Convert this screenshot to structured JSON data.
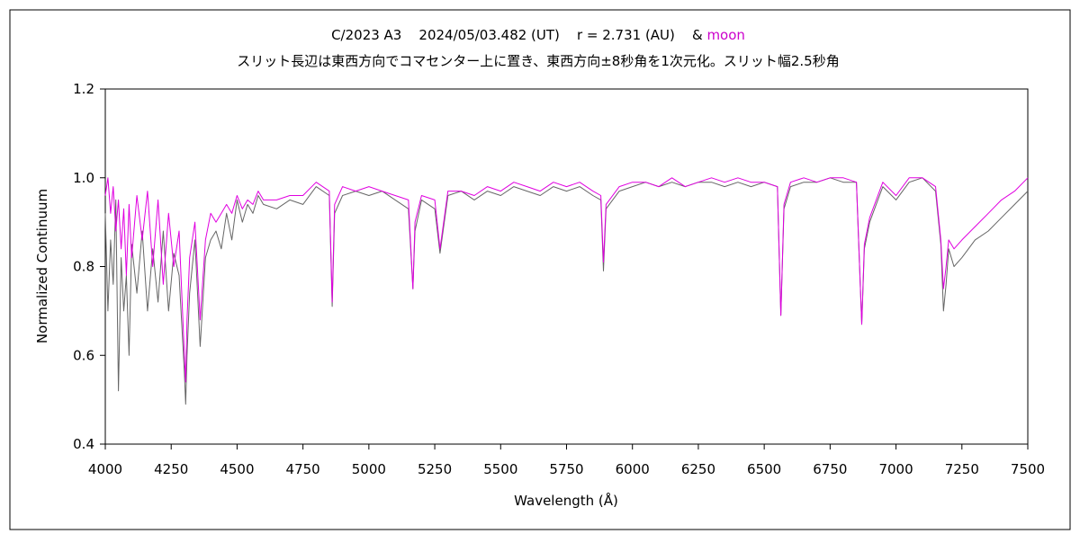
{
  "title": {
    "prefix": "C/2023 A3    2024/05/03.482 (UT)    r = 2.731 (AU)    & ",
    "highlight": "moon",
    "highlight_color": "#cc00cc",
    "subtitle": "スリット長辺は東西方向でコマセンター上に置き、東西方向±8秒角を1次元化。スリット幅2.5秒角"
  },
  "chart_data": {
    "type": "line",
    "xlabel": "Wavelength (Å)",
    "ylabel": "Normalized Continuum",
    "xlim": [
      4000,
      7500
    ],
    "ylim": [
      0.4,
      1.2
    ],
    "xticks": [
      4000,
      4250,
      4500,
      4750,
      5000,
      5250,
      5500,
      5750,
      6000,
      6250,
      6500,
      6750,
      7000,
      7250,
      7500
    ],
    "yticks": [
      "0.4",
      "0.6",
      "0.8",
      "1.0",
      "1.2"
    ],
    "grid": false,
    "legend": "none",
    "series": [
      {
        "color": "#666666",
        "x": [
          4000,
          4010,
          4020,
          4030,
          4040,
          4050,
          4060,
          4070,
          4080,
          4090,
          4100,
          4120,
          4140,
          4160,
          4180,
          4200,
          4220,
          4240,
          4260,
          4280,
          4300,
          4305,
          4310,
          4320,
          4340,
          4360,
          4380,
          4400,
          4420,
          4440,
          4460,
          4480,
          4500,
          4520,
          4540,
          4560,
          4580,
          4600,
          4650,
          4700,
          4750,
          4800,
          4850,
          4861,
          4870,
          4900,
          4950,
          5000,
          5050,
          5100,
          5150,
          5167,
          5175,
          5200,
          5250,
          5270,
          5300,
          5350,
          5400,
          5450,
          5500,
          5550,
          5600,
          5650,
          5700,
          5750,
          5800,
          5850,
          5880,
          5890,
          5900,
          5950,
          6000,
          6050,
          6100,
          6150,
          6200,
          6250,
          6300,
          6350,
          6400,
          6450,
          6500,
          6550,
          6563,
          6575,
          6600,
          6650,
          6700,
          6750,
          6800,
          6850,
          6870,
          6880,
          6900,
          6950,
          7000,
          7050,
          7100,
          7150,
          7170,
          7180,
          7190,
          7200,
          7220,
          7250,
          7300,
          7350,
          7400,
          7450,
          7500
        ],
        "y": [
          0.92,
          0.7,
          0.86,
          0.76,
          0.95,
          0.52,
          0.82,
          0.7,
          0.78,
          0.6,
          0.85,
          0.74,
          0.88,
          0.7,
          0.84,
          0.72,
          0.88,
          0.7,
          0.83,
          0.78,
          0.56,
          0.49,
          0.6,
          0.74,
          0.86,
          0.62,
          0.82,
          0.86,
          0.88,
          0.84,
          0.92,
          0.86,
          0.95,
          0.9,
          0.94,
          0.92,
          0.96,
          0.94,
          0.93,
          0.95,
          0.94,
          0.98,
          0.96,
          0.71,
          0.92,
          0.96,
          0.97,
          0.96,
          0.97,
          0.95,
          0.93,
          0.75,
          0.88,
          0.95,
          0.93,
          0.83,
          0.96,
          0.97,
          0.95,
          0.97,
          0.96,
          0.98,
          0.97,
          0.96,
          0.98,
          0.97,
          0.98,
          0.96,
          0.95,
          0.79,
          0.93,
          0.97,
          0.98,
          0.99,
          0.98,
          0.99,
          0.98,
          0.99,
          0.99,
          0.98,
          0.99,
          0.98,
          0.99,
          0.98,
          0.69,
          0.93,
          0.98,
          0.99,
          0.99,
          1.0,
          0.99,
          0.99,
          0.67,
          0.84,
          0.9,
          0.98,
          0.95,
          0.99,
          1.0,
          0.97,
          0.85,
          0.7,
          0.76,
          0.84,
          0.8,
          0.82,
          0.86,
          0.88,
          0.91,
          0.94,
          0.97
        ]
      },
      {
        "color": "#e000e0",
        "x": [
          4000,
          4010,
          4020,
          4030,
          4040,
          4050,
          4060,
          4070,
          4080,
          4090,
          4100,
          4120,
          4140,
          4160,
          4180,
          4200,
          4220,
          4240,
          4260,
          4280,
          4300,
          4305,
          4310,
          4320,
          4340,
          4360,
          4380,
          4400,
          4420,
          4440,
          4460,
          4480,
          4500,
          4520,
          4540,
          4560,
          4580,
          4600,
          4650,
          4700,
          4750,
          4800,
          4850,
          4861,
          4870,
          4900,
          4950,
          5000,
          5050,
          5100,
          5150,
          5167,
          5175,
          5200,
          5250,
          5270,
          5300,
          5350,
          5400,
          5450,
          5500,
          5550,
          5600,
          5650,
          5700,
          5750,
          5800,
          5850,
          5880,
          5890,
          5900,
          5950,
          6000,
          6050,
          6100,
          6150,
          6200,
          6250,
          6300,
          6350,
          6400,
          6450,
          6500,
          6550,
          6563,
          6575,
          6600,
          6650,
          6700,
          6750,
          6800,
          6850,
          6870,
          6880,
          6900,
          6950,
          7000,
          7050,
          7100,
          7150,
          7170,
          7180,
          7190,
          7200,
          7220,
          7250,
          7300,
          7350,
          7400,
          7450,
          7500
        ],
        "y": [
          0.96,
          1.0,
          0.92,
          0.98,
          0.88,
          0.95,
          0.84,
          0.93,
          0.78,
          0.94,
          0.82,
          0.96,
          0.86,
          0.97,
          0.8,
          0.95,
          0.76,
          0.92,
          0.8,
          0.88,
          0.6,
          0.54,
          0.68,
          0.82,
          0.9,
          0.68,
          0.86,
          0.92,
          0.9,
          0.92,
          0.94,
          0.92,
          0.96,
          0.93,
          0.95,
          0.94,
          0.97,
          0.95,
          0.95,
          0.96,
          0.96,
          0.99,
          0.97,
          0.72,
          0.94,
          0.98,
          0.97,
          0.98,
          0.97,
          0.96,
          0.95,
          0.75,
          0.9,
          0.96,
          0.95,
          0.84,
          0.97,
          0.97,
          0.96,
          0.98,
          0.97,
          0.99,
          0.98,
          0.97,
          0.99,
          0.98,
          0.99,
          0.97,
          0.96,
          0.81,
          0.94,
          0.98,
          0.99,
          0.99,
          0.98,
          1.0,
          0.98,
          0.99,
          1.0,
          0.99,
          1.0,
          0.99,
          0.99,
          0.98,
          0.69,
          0.94,
          0.99,
          1.0,
          0.99,
          1.0,
          1.0,
          0.99,
          0.67,
          0.85,
          0.91,
          0.99,
          0.96,
          1.0,
          1.0,
          0.98,
          0.86,
          0.75,
          0.8,
          0.86,
          0.84,
          0.86,
          0.89,
          0.92,
          0.95,
          0.97,
          1.0
        ]
      }
    ]
  }
}
